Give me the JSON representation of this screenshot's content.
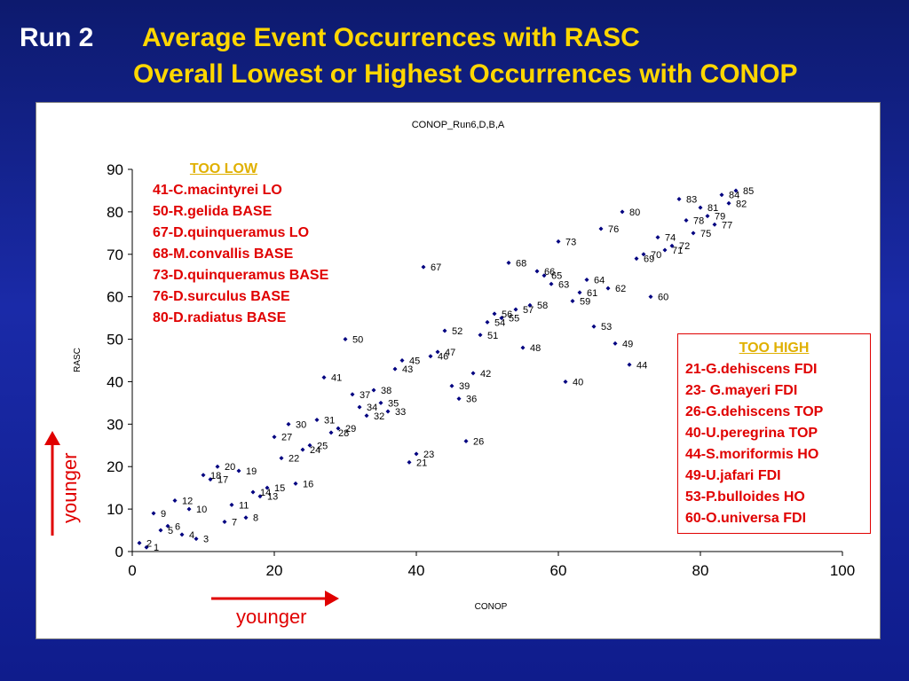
{
  "slide": {
    "run_label": "Run 2",
    "title_line1": "Average Event Occurrences with RASC",
    "title_line2": "Overall Lowest or Highest Occurrences with CONOP"
  },
  "too_low": {
    "heading": "TOO LOW",
    "items": [
      "41-C.macintyrei LO",
      "50-R.gelida BASE",
      "67-D.quinqueramus LO",
      "68-M.convallis BASE",
      "73-D.quinqueramus BASE",
      "76-D.surculus BASE",
      "80-D.radiatus BASE"
    ]
  },
  "too_high": {
    "heading": "TOO HIGH",
    "items": [
      "21-G.dehiscens FDI",
      "23- G.mayeri FDI",
      "26-G.dehiscens TOP",
      "40-U.peregrina TOP",
      "44-S.moriformis HO",
      "49-U.jafari FDI",
      "53-P.bulloides HO",
      "60-O.universa FDI"
    ]
  },
  "arrows": {
    "horizontal_label": "younger",
    "vertical_label": "younger",
    "color": "#e00000"
  },
  "colors": {
    "marker": "#000080",
    "title_yellow": "#ffd700",
    "background": "#1a2aa8"
  },
  "chart_data": {
    "type": "scatter",
    "title": "CONOP_Run6,D,B,A",
    "xlabel": "CONOP",
    "ylabel": "RASC",
    "xlim": [
      0,
      100
    ],
    "ylim": [
      0,
      90
    ],
    "xticks": [
      0,
      20,
      40,
      60,
      80,
      100
    ],
    "yticks": [
      0,
      10,
      20,
      30,
      40,
      50,
      60,
      70,
      80,
      90
    ],
    "points": [
      {
        "label": "1",
        "x": 2,
        "y": 1
      },
      {
        "label": "2",
        "x": 1,
        "y": 2
      },
      {
        "label": "3",
        "x": 9,
        "y": 3
      },
      {
        "label": "4",
        "x": 7,
        "y": 4
      },
      {
        "label": "5",
        "x": 4,
        "y": 5
      },
      {
        "label": "6",
        "x": 5,
        "y": 6
      },
      {
        "label": "7",
        "x": 13,
        "y": 7
      },
      {
        "label": "8",
        "x": 16,
        "y": 8
      },
      {
        "label": "9",
        "x": 3,
        "y": 9
      },
      {
        "label": "10",
        "x": 8,
        "y": 10
      },
      {
        "label": "11",
        "x": 14,
        "y": 11
      },
      {
        "label": "12",
        "x": 6,
        "y": 12
      },
      {
        "label": "13",
        "x": 18,
        "y": 13
      },
      {
        "label": "14",
        "x": 17,
        "y": 14
      },
      {
        "label": "15",
        "x": 19,
        "y": 15
      },
      {
        "label": "16",
        "x": 23,
        "y": 16
      },
      {
        "label": "17",
        "x": 11,
        "y": 17
      },
      {
        "label": "18",
        "x": 10,
        "y": 18
      },
      {
        "label": "19",
        "x": 15,
        "y": 19
      },
      {
        "label": "20",
        "x": 12,
        "y": 20
      },
      {
        "label": "21",
        "x": 39,
        "y": 21
      },
      {
        "label": "22",
        "x": 21,
        "y": 22
      },
      {
        "label": "23",
        "x": 40,
        "y": 23
      },
      {
        "label": "24",
        "x": 24,
        "y": 24
      },
      {
        "label": "25",
        "x": 25,
        "y": 25
      },
      {
        "label": "26",
        "x": 47,
        "y": 26
      },
      {
        "label": "27",
        "x": 20,
        "y": 27
      },
      {
        "label": "28",
        "x": 28,
        "y": 28
      },
      {
        "label": "29",
        "x": 29,
        "y": 29
      },
      {
        "label": "30",
        "x": 22,
        "y": 30
      },
      {
        "label": "31",
        "x": 26,
        "y": 31
      },
      {
        "label": "32",
        "x": 33,
        "y": 32
      },
      {
        "label": "33",
        "x": 36,
        "y": 33
      },
      {
        "label": "34",
        "x": 32,
        "y": 34
      },
      {
        "label": "35",
        "x": 35,
        "y": 35
      },
      {
        "label": "36",
        "x": 46,
        "y": 36
      },
      {
        "label": "37",
        "x": 31,
        "y": 37
      },
      {
        "label": "38",
        "x": 34,
        "y": 38
      },
      {
        "label": "39",
        "x": 45,
        "y": 39
      },
      {
        "label": "40",
        "x": 61,
        "y": 40
      },
      {
        "label": "41",
        "x": 27,
        "y": 41
      },
      {
        "label": "42",
        "x": 48,
        "y": 42
      },
      {
        "label": "43",
        "x": 37,
        "y": 43
      },
      {
        "label": "44",
        "x": 70,
        "y": 44
      },
      {
        "label": "45",
        "x": 38,
        "y": 45
      },
      {
        "label": "46",
        "x": 42,
        "y": 46
      },
      {
        "label": "47",
        "x": 43,
        "y": 47
      },
      {
        "label": "48",
        "x": 55,
        "y": 48
      },
      {
        "label": "49",
        "x": 68,
        "y": 49
      },
      {
        "label": "50",
        "x": 30,
        "y": 50
      },
      {
        "label": "51",
        "x": 49,
        "y": 51
      },
      {
        "label": "52",
        "x": 44,
        "y": 52
      },
      {
        "label": "53",
        "x": 65,
        "y": 53
      },
      {
        "label": "54",
        "x": 50,
        "y": 54
      },
      {
        "label": "55",
        "x": 52,
        "y": 55
      },
      {
        "label": "56",
        "x": 51,
        "y": 56
      },
      {
        "label": "57",
        "x": 54,
        "y": 57
      },
      {
        "label": "58",
        "x": 56,
        "y": 58
      },
      {
        "label": "59",
        "x": 62,
        "y": 59
      },
      {
        "label": "60",
        "x": 73,
        "y": 60
      },
      {
        "label": "61",
        "x": 63,
        "y": 61
      },
      {
        "label": "62",
        "x": 67,
        "y": 62
      },
      {
        "label": "63",
        "x": 59,
        "y": 63
      },
      {
        "label": "64",
        "x": 64,
        "y": 64
      },
      {
        "label": "65",
        "x": 58,
        "y": 65
      },
      {
        "label": "66",
        "x": 57,
        "y": 66
      },
      {
        "label": "67",
        "x": 41,
        "y": 67
      },
      {
        "label": "68",
        "x": 53,
        "y": 68
      },
      {
        "label": "69",
        "x": 71,
        "y": 69
      },
      {
        "label": "70",
        "x": 72,
        "y": 70
      },
      {
        "label": "71",
        "x": 75,
        "y": 71
      },
      {
        "label": "72",
        "x": 76,
        "y": 72
      },
      {
        "label": "73",
        "x": 60,
        "y": 73
      },
      {
        "label": "74",
        "x": 74,
        "y": 74
      },
      {
        "label": "75",
        "x": 79,
        "y": 75
      },
      {
        "label": "76",
        "x": 66,
        "y": 76
      },
      {
        "label": "77",
        "x": 82,
        "y": 77
      },
      {
        "label": "78",
        "x": 78,
        "y": 78
      },
      {
        "label": "79",
        "x": 81,
        "y": 79
      },
      {
        "label": "80",
        "x": 69,
        "y": 80
      },
      {
        "label": "81",
        "x": 80,
        "y": 81
      },
      {
        "label": "82",
        "x": 84,
        "y": 82
      },
      {
        "label": "83",
        "x": 77,
        "y": 83
      },
      {
        "label": "84",
        "x": 83,
        "y": 84
      },
      {
        "label": "85",
        "x": 85,
        "y": 85
      }
    ]
  }
}
